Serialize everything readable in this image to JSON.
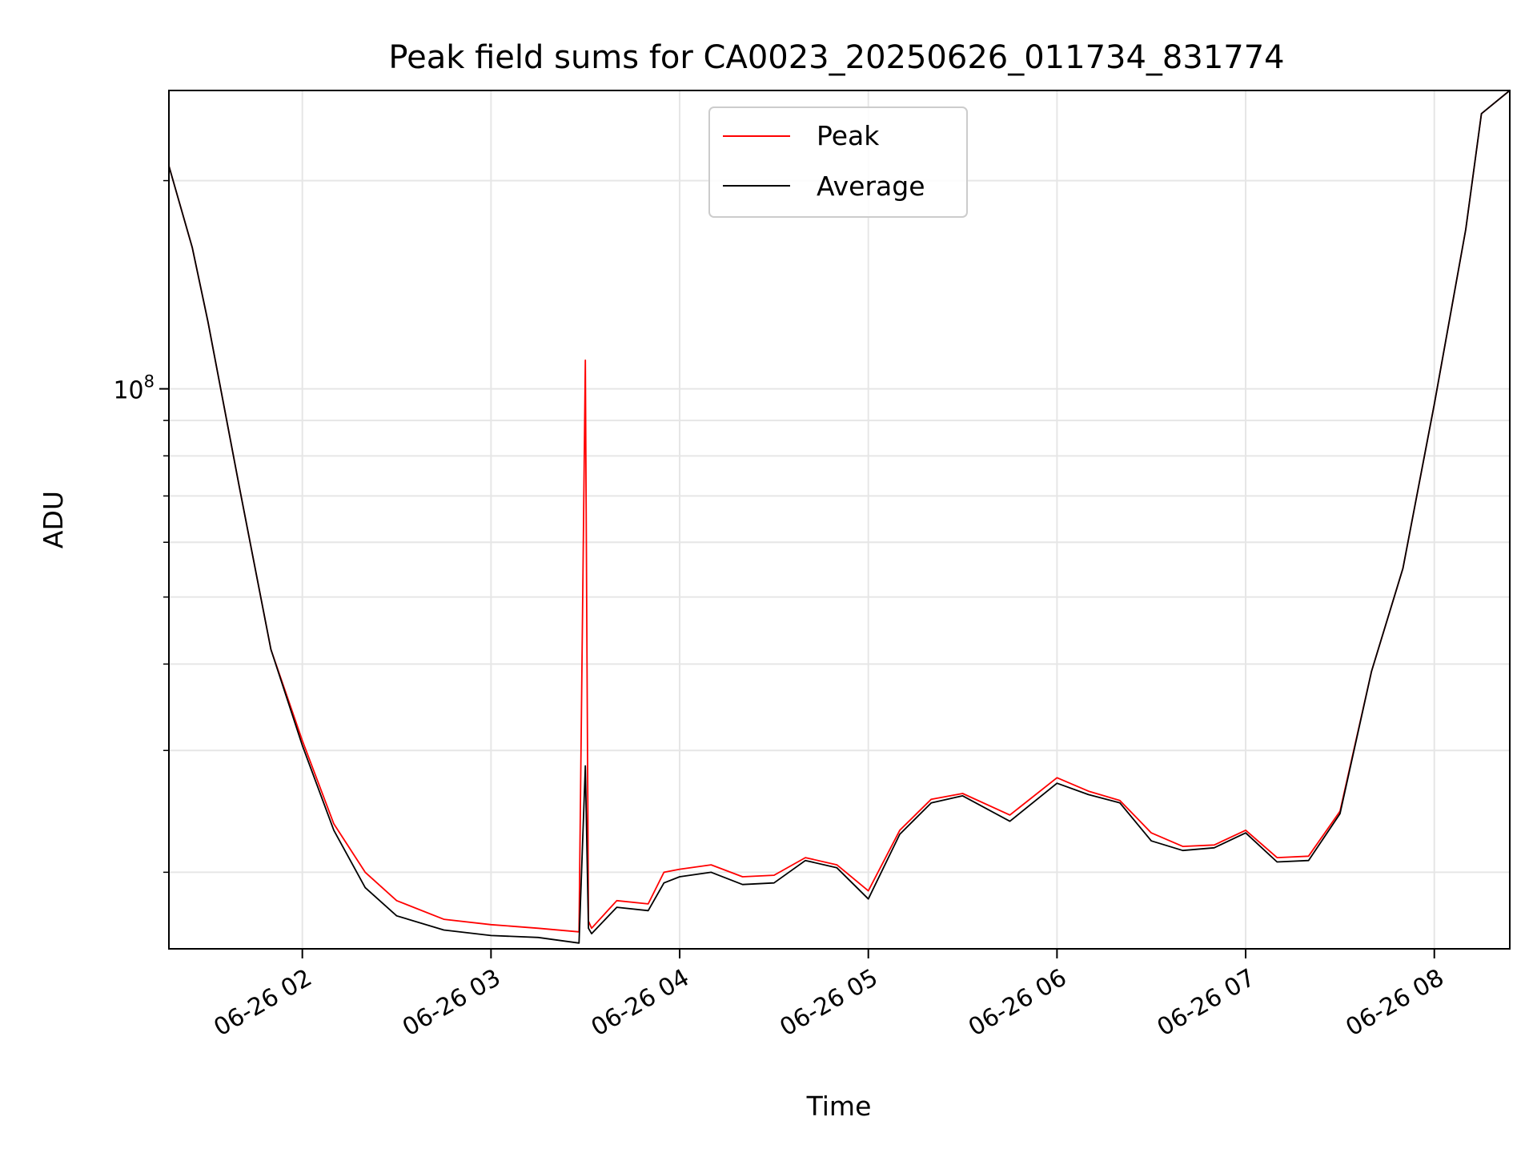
{
  "chart_data": {
    "type": "line",
    "title": "Peak field sums for CA0023_20250626_011734_831774",
    "xlabel": "Time",
    "ylabel": "ADU",
    "yscale": "log",
    "grid": true,
    "legend_position": "top-center",
    "xlim": [
      "2025-06-26T01:17:34",
      "2025-06-26T08:24:00"
    ],
    "ylim": [
      15500000,
      270000000
    ],
    "x_ticks": [
      "06-26 02",
      "06-26 03",
      "06-26 04",
      "06-26 05",
      "06-26 06",
      "06-26 07",
      "06-26 08"
    ],
    "x_tick_times": [
      "2025-06-26T02:00:00",
      "2025-06-26T03:00:00",
      "2025-06-26T04:00:00",
      "2025-06-26T05:00:00",
      "2025-06-26T06:00:00",
      "2025-06-26T07:00:00",
      "2025-06-26T08:00:00"
    ],
    "y_tick_labels": [
      {
        "base": "10",
        "exp": "8",
        "value": 100000000
      }
    ],
    "y_minor_ticks": [
      20000000,
      30000000,
      40000000,
      50000000,
      60000000,
      70000000,
      80000000,
      90000000,
      200000000
    ],
    "series": [
      {
        "name": "Peak",
        "color": "#ff0000",
        "x": [
          "2025-06-26T01:17:34",
          "2025-06-26T01:25:00",
          "2025-06-26T01:30:00",
          "2025-06-26T01:40:00",
          "2025-06-26T01:50:00",
          "2025-06-26T02:00:00",
          "2025-06-26T02:10:00",
          "2025-06-26T02:20:00",
          "2025-06-26T02:30:00",
          "2025-06-26T02:45:00",
          "2025-06-26T03:00:00",
          "2025-06-26T03:15:00",
          "2025-06-26T03:28:00",
          "2025-06-26T03:30:00",
          "2025-06-26T03:31:00",
          "2025-06-26T03:32:00",
          "2025-06-26T03:40:00",
          "2025-06-26T03:50:00",
          "2025-06-26T03:55:00",
          "2025-06-26T04:00:00",
          "2025-06-26T04:10:00",
          "2025-06-26T04:20:00",
          "2025-06-26T04:30:00",
          "2025-06-26T04:40:00",
          "2025-06-26T04:50:00",
          "2025-06-26T05:00:00",
          "2025-06-26T05:10:00",
          "2025-06-26T05:20:00",
          "2025-06-26T05:30:00",
          "2025-06-26T05:45:00",
          "2025-06-26T06:00:00",
          "2025-06-26T06:10:00",
          "2025-06-26T06:20:00",
          "2025-06-26T06:30:00",
          "2025-06-26T06:40:00",
          "2025-06-26T06:50:00",
          "2025-06-26T07:00:00",
          "2025-06-26T07:10:00",
          "2025-06-26T07:20:00",
          "2025-06-26T07:30:00",
          "2025-06-26T07:40:00",
          "2025-06-26T07:50:00",
          "2025-06-26T08:00:00",
          "2025-06-26T08:10:00",
          "2025-06-26T08:15:00",
          "2025-06-26T08:24:00"
        ],
        "values": [
          210000000,
          160000000,
          125000000,
          72000000,
          42000000,
          31000000,
          23500000,
          20000000,
          18200000,
          17100000,
          16800000,
          16600000,
          16400000,
          110000000,
          17000000,
          16600000,
          18200000,
          18000000,
          20000000,
          20200000,
          20500000,
          19700000,
          19800000,
          21000000,
          20500000,
          18800000,
          23000000,
          25500000,
          26000000,
          24200000,
          27400000,
          26200000,
          25400000,
          22800000,
          21800000,
          21900000,
          23000000,
          21000000,
          21100000,
          24500000,
          39000000,
          55000000,
          95000000,
          170000000,
          250000000,
          270000000
        ]
      },
      {
        "name": "Average",
        "color": "#000000",
        "x": [
          "2025-06-26T01:17:34",
          "2025-06-26T01:25:00",
          "2025-06-26T01:30:00",
          "2025-06-26T01:40:00",
          "2025-06-26T01:50:00",
          "2025-06-26T02:00:00",
          "2025-06-26T02:10:00",
          "2025-06-26T02:20:00",
          "2025-06-26T02:30:00",
          "2025-06-26T02:45:00",
          "2025-06-26T03:00:00",
          "2025-06-26T03:15:00",
          "2025-06-26T03:28:00",
          "2025-06-26T03:30:00",
          "2025-06-26T03:31:00",
          "2025-06-26T03:32:00",
          "2025-06-26T03:40:00",
          "2025-06-26T03:50:00",
          "2025-06-26T03:55:00",
          "2025-06-26T04:00:00",
          "2025-06-26T04:10:00",
          "2025-06-26T04:20:00",
          "2025-06-26T04:30:00",
          "2025-06-26T04:40:00",
          "2025-06-26T04:50:00",
          "2025-06-26T05:00:00",
          "2025-06-26T05:10:00",
          "2025-06-26T05:20:00",
          "2025-06-26T05:30:00",
          "2025-06-26T05:45:00",
          "2025-06-26T06:00:00",
          "2025-06-26T06:10:00",
          "2025-06-26T06:20:00",
          "2025-06-26T06:30:00",
          "2025-06-26T06:40:00",
          "2025-06-26T06:50:00",
          "2025-06-26T07:00:00",
          "2025-06-26T07:10:00",
          "2025-06-26T07:20:00",
          "2025-06-26T07:30:00",
          "2025-06-26T07:40:00",
          "2025-06-26T07:50:00",
          "2025-06-26T08:00:00",
          "2025-06-26T08:10:00",
          "2025-06-26T08:15:00",
          "2025-06-26T08:24:00"
        ],
        "values": [
          210000000,
          160000000,
          125000000,
          72000000,
          42000000,
          30500000,
          23000000,
          19000000,
          17300000,
          16500000,
          16200000,
          16100000,
          15800000,
          28500000,
          16600000,
          16300000,
          17800000,
          17600000,
          19300000,
          19700000,
          20000000,
          19200000,
          19300000,
          20800000,
          20300000,
          18300000,
          22700000,
          25200000,
          25800000,
          23700000,
          26900000,
          25900000,
          25200000,
          22200000,
          21500000,
          21700000,
          22800000,
          20700000,
          20800000,
          24300000,
          39000000,
          55000000,
          95000000,
          170000000,
          250000000,
          270000000
        ]
      }
    ]
  }
}
